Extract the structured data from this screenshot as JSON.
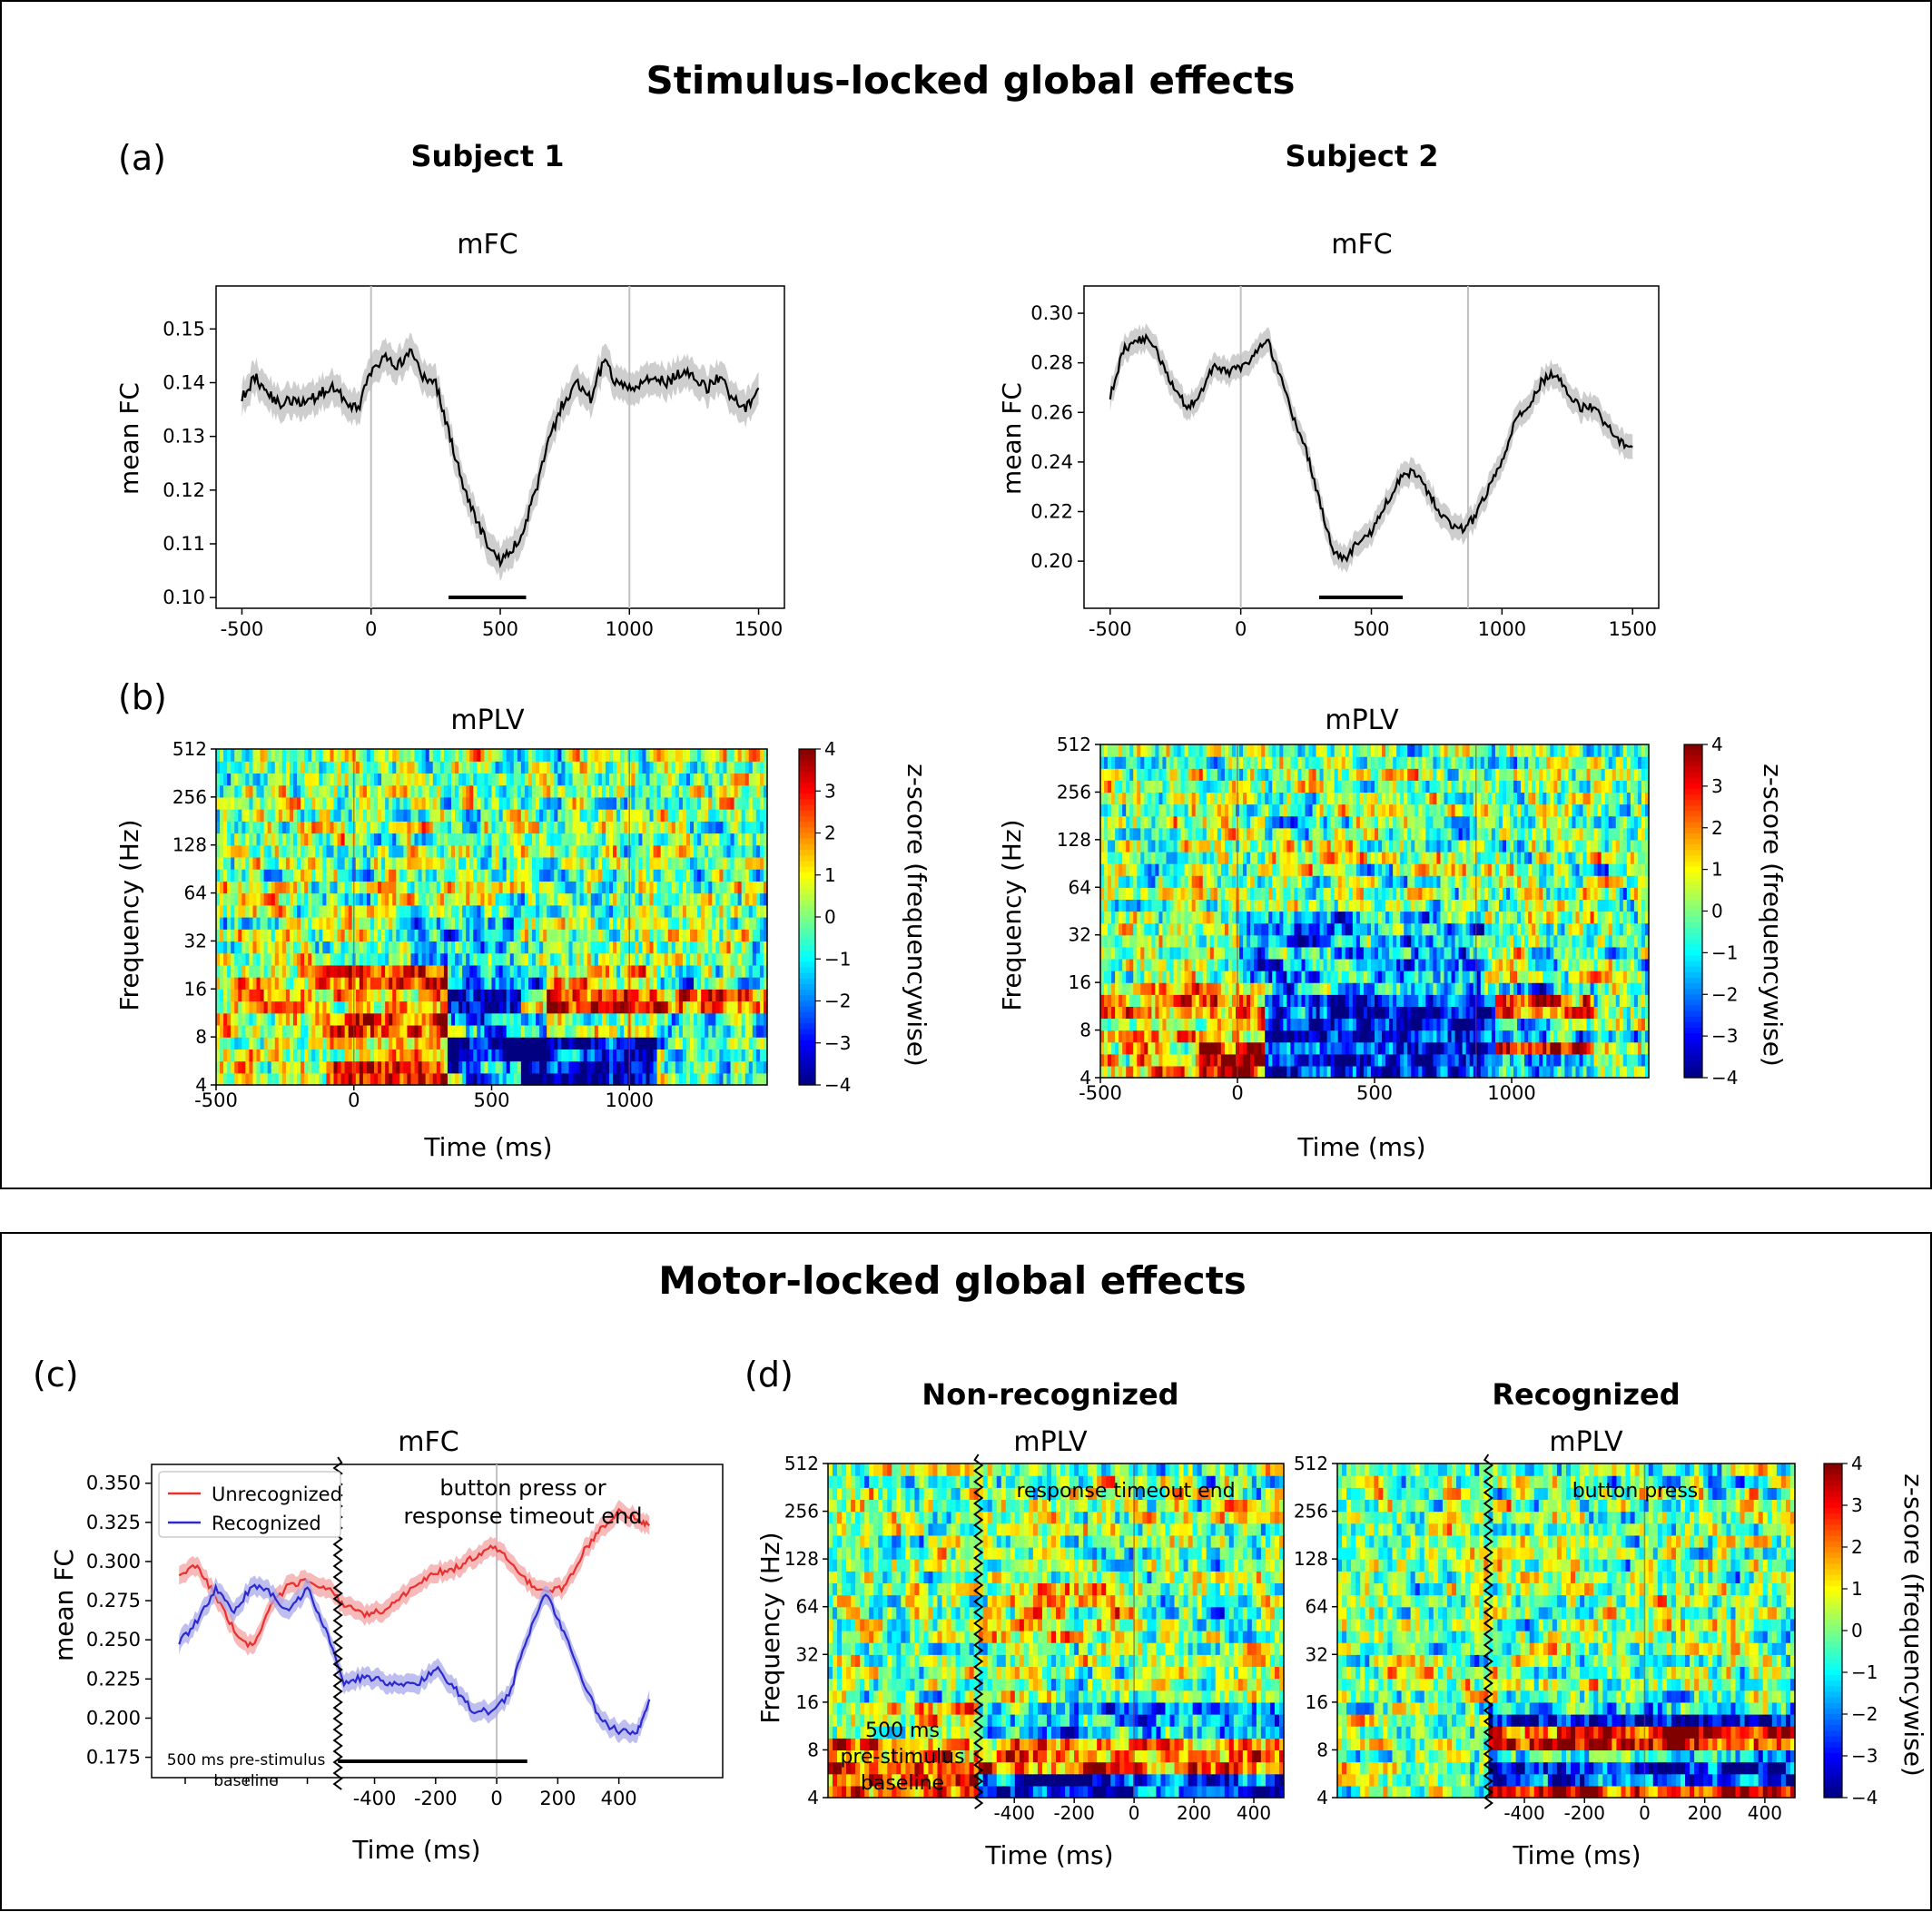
{
  "colors": {
    "black": "#000000",
    "gray_band": "#bdbdbd",
    "red": "#e8302f",
    "blue": "#2a2ad0",
    "red_band": "#f4a3a3",
    "blue_band": "#a9a9ea",
    "marker": "#c0c0c0"
  },
  "sections": {
    "stim_title": "Stimulus-locked global effects",
    "motor_title": "Motor-locked global effects"
  },
  "panel_labels": {
    "a": "(a)",
    "b": "(b)",
    "c": "(c)",
    "d": "(d)"
  },
  "subjects": {
    "s1": "Subject 1",
    "s2": "Subject 2"
  },
  "headers": {
    "nonrec": "Non-recognized",
    "rec": "Recognized"
  },
  "titles": {
    "mfc": "mFC",
    "mplv": "mPLV"
  },
  "axis_labels": {
    "mean_fc": "mean FC",
    "freq": "Frequency (Hz)",
    "time": "Time (ms)",
    "zscore": "z-score (frequencywise)"
  },
  "annotations": {
    "c_top_line1": "button press or",
    "c_top_line2": "response timeout end",
    "c_baseline_line1": "500 ms pre-stimulus",
    "c_baseline_line2": "baseline",
    "d_nonrec": "response timeout end",
    "d_rec": "button press",
    "d_base_line1": "500 ms",
    "d_base_line2": "pre-stimulus",
    "d_base_line3": "baseline"
  },
  "chart_data": [
    {
      "id": "a1",
      "type": "line",
      "title": "mFC",
      "ylabel": "mean FC",
      "xlim": [
        -600,
        1600
      ],
      "ylim": [
        0.098,
        0.158
      ],
      "xticks": [
        "-500",
        "0",
        "500",
        "1000",
        "1500"
      ],
      "yticks": [
        "0.10",
        "0.11",
        "0.12",
        "0.13",
        "0.14",
        "0.15"
      ],
      "vlines": [
        0,
        1000
      ],
      "sig_bar": [
        300,
        600
      ],
      "x": [
        -500,
        -450,
        -400,
        -350,
        -300,
        -250,
        -200,
        -150,
        -100,
        -50,
        0,
        50,
        100,
        150,
        200,
        250,
        300,
        350,
        400,
        450,
        500,
        550,
        600,
        650,
        700,
        750,
        800,
        850,
        900,
        950,
        1000,
        1050,
        1100,
        1150,
        1200,
        1250,
        1300,
        1350,
        1400,
        1450,
        1500
      ],
      "y": [
        0.137,
        0.141,
        0.138,
        0.136,
        0.137,
        0.136,
        0.138,
        0.139,
        0.137,
        0.135,
        0.142,
        0.145,
        0.143,
        0.146,
        0.141,
        0.14,
        0.131,
        0.122,
        0.115,
        0.11,
        0.107,
        0.109,
        0.114,
        0.122,
        0.131,
        0.137,
        0.14,
        0.137,
        0.144,
        0.14,
        0.139,
        0.14,
        0.141,
        0.14,
        0.142,
        0.141,
        0.139,
        0.141,
        0.137,
        0.135,
        0.139
      ],
      "band": 0.003
    },
    {
      "id": "a2",
      "type": "line",
      "title": "mFC",
      "ylabel": "mean FC",
      "xlim": [
        -600,
        1600
      ],
      "ylim": [
        0.181,
        0.311
      ],
      "xticks": [
        "-500",
        "0",
        "500",
        "1000",
        "1500"
      ],
      "yticks": [
        "0.20",
        "0.22",
        "0.24",
        "0.26",
        "0.28",
        "0.30"
      ],
      "vlines": [
        0,
        870
      ],
      "sig_bar": [
        300,
        620
      ],
      "x": [
        -500,
        -450,
        -400,
        -350,
        -300,
        -250,
        -200,
        -150,
        -100,
        -50,
        0,
        50,
        100,
        150,
        200,
        250,
        300,
        350,
        400,
        450,
        500,
        550,
        600,
        650,
        700,
        750,
        800,
        850,
        900,
        950,
        1000,
        1050,
        1100,
        1150,
        1200,
        1250,
        1300,
        1350,
        1400,
        1450,
        1500
      ],
      "y": [
        0.266,
        0.285,
        0.289,
        0.29,
        0.28,
        0.268,
        0.262,
        0.268,
        0.28,
        0.276,
        0.278,
        0.283,
        0.29,
        0.275,
        0.258,
        0.245,
        0.225,
        0.205,
        0.2,
        0.208,
        0.212,
        0.222,
        0.232,
        0.236,
        0.231,
        0.222,
        0.215,
        0.213,
        0.218,
        0.23,
        0.24,
        0.257,
        0.262,
        0.272,
        0.276,
        0.268,
        0.262,
        0.262,
        0.255,
        0.248,
        0.246
      ],
      "band": 0.005
    },
    {
      "id": "c",
      "type": "line",
      "title": "mFC",
      "ylabel": "mean FC",
      "xlabel": "Time (ms)",
      "xlim": [
        -1130,
        740
      ],
      "ylim": [
        0.162,
        0.362
      ],
      "xticks": [
        "-400",
        "-200",
        "0",
        "200",
        "400"
      ],
      "yticks": [
        "0.175",
        "0.200",
        "0.225",
        "0.250",
        "0.275",
        "0.300",
        "0.325",
        "0.350"
      ],
      "vlines": [
        0
      ],
      "break_x": -520,
      "sig_bar": [
        -520,
        100
      ],
      "legend": [
        "Unrecognized",
        "Recognized"
      ],
      "series": [
        {
          "name": "Unrecognized",
          "x": [
            -1040,
            -980,
            -920,
            -860,
            -800,
            -740,
            -680,
            -620,
            -560,
            -500,
            -440,
            -380,
            -320,
            -260,
            -200,
            -140,
            -80,
            -20,
            40,
            100,
            160,
            220,
            280,
            340,
            400,
            460,
            500
          ],
          "y": [
            0.292,
            0.297,
            0.278,
            0.256,
            0.245,
            0.272,
            0.285,
            0.288,
            0.284,
            0.272,
            0.266,
            0.268,
            0.276,
            0.285,
            0.293,
            0.295,
            0.302,
            0.31,
            0.302,
            0.287,
            0.28,
            0.283,
            0.305,
            0.32,
            0.333,
            0.327,
            0.323
          ]
        },
        {
          "name": "Recognized",
          "x": [
            -1040,
            -980,
            -920,
            -860,
            -800,
            -740,
            -680,
            -620,
            -560,
            -500,
            -440,
            -380,
            -320,
            -260,
            -200,
            -140,
            -80,
            -20,
            40,
            100,
            160,
            220,
            280,
            340,
            400,
            460,
            500
          ],
          "y": [
            0.248,
            0.262,
            0.282,
            0.268,
            0.285,
            0.28,
            0.268,
            0.283,
            0.257,
            0.222,
            0.226,
            0.224,
            0.221,
            0.222,
            0.232,
            0.22,
            0.205,
            0.204,
            0.214,
            0.252,
            0.28,
            0.255,
            0.225,
            0.198,
            0.192,
            0.19,
            0.212
          ]
        }
      ],
      "band": 0.006
    },
    {
      "id": "b1",
      "type": "heatmap",
      "title": "mPLV",
      "ylabel": "Frequency (Hz)",
      "xlabel": "Time (ms)",
      "xticks": [
        "-500",
        "0",
        "500",
        "1000"
      ],
      "yticks": [
        "4",
        "8",
        "16",
        "32",
        "64",
        "128",
        "256",
        "512"
      ],
      "colorbar": [
        "4",
        "3",
        "2",
        "1",
        "0",
        "−1",
        "−2",
        "−3",
        "−4"
      ],
      "vmin": -4,
      "vmax": 4
    },
    {
      "id": "b2",
      "type": "heatmap",
      "title": "mPLV",
      "ylabel": "Frequency (Hz)",
      "xlabel": "Time (ms)",
      "xticks": [
        "-500",
        "0",
        "500",
        "1000"
      ],
      "yticks": [
        "4",
        "8",
        "16",
        "32",
        "64",
        "128",
        "256",
        "512"
      ],
      "colorbar": [
        "4",
        "3",
        "2",
        "1",
        "0",
        "−1",
        "−2",
        "−3",
        "−4"
      ],
      "vmin": -4,
      "vmax": 4
    },
    {
      "id": "d1",
      "type": "heatmap",
      "title": "mPLV",
      "ylabel": "Frequency (Hz)",
      "xlabel": "Time (ms)",
      "xticks": [
        "-400",
        "-200",
        "0",
        "200",
        "400"
      ],
      "yticks": [
        "4",
        "8",
        "16",
        "32",
        "64",
        "128",
        "256",
        "512"
      ]
    },
    {
      "id": "d2",
      "type": "heatmap",
      "title": "mPLV",
      "xlabel": "Time (ms)",
      "xticks": [
        "-400",
        "-200",
        "0",
        "200",
        "400"
      ],
      "yticks": [
        "4",
        "8",
        "16",
        "32",
        "64",
        "128",
        "256",
        "512"
      ],
      "colorbar": [
        "4",
        "3",
        "2",
        "1",
        "0",
        "−1",
        "−2",
        "−3",
        "−4"
      ],
      "vmin": -4,
      "vmax": 4
    }
  ]
}
